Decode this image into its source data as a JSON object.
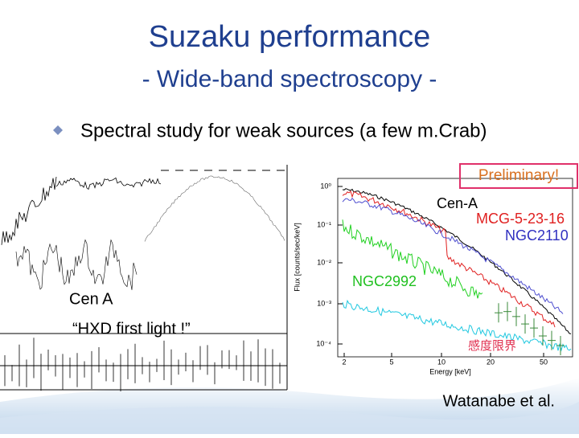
{
  "header": {
    "title": "Suzaku performance",
    "subtitle": "- Wide-band spectroscopy -"
  },
  "bullet": "Spectral study for weak sources (a few m.Crab)",
  "left_plot": {
    "source": "Cen A",
    "caption": "“HXD first light !”"
  },
  "right_plot": {
    "badge": "Preliminary!",
    "labels": [
      "Cen-A",
      "MCG-5-23-16",
      "NGC2110",
      "NGC2992",
      "感度限界"
    ],
    "x_axis": "Energy [keV]",
    "y_axis": "Flux [counts/sec/keV]",
    "x_tick_labels": [
      "2",
      "5",
      "10",
      "20",
      "50"
    ],
    "y_tick_labels": [
      "10⁰",
      "10⁻¹",
      "10⁻²",
      "10⁻³",
      "10⁻⁴"
    ]
  },
  "credit": "Watanabe et al."
}
